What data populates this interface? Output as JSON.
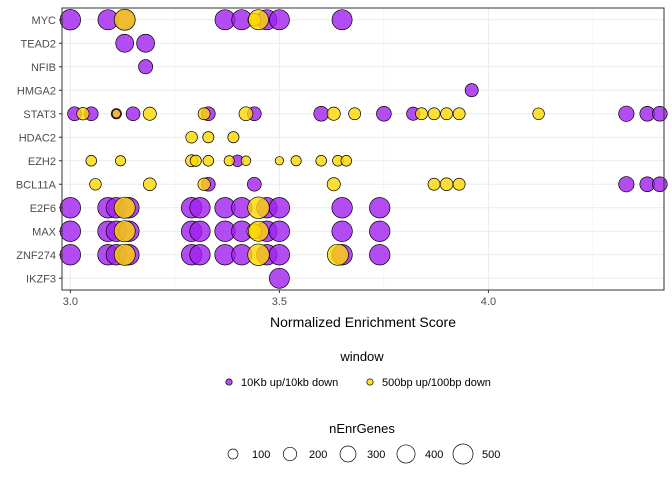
{
  "chart_data": {
    "type": "scatter",
    "xlabel": "Normalized Enrichment Score",
    "ylabel": "",
    "xlim": [
      2.98,
      4.42
    ],
    "x_ticks": [
      3.0,
      3.5,
      4.0
    ],
    "x_tick_labels": [
      "3.0",
      "3.5",
      "4.0"
    ],
    "grid": true,
    "categories": [
      "MYC",
      "TEAD2",
      "NFIB",
      "HMGA2",
      "STAT3",
      "HDAC2",
      "EZH2",
      "BCL11A",
      "E2F6",
      "MAX",
      "ZNF274",
      "IKZF3"
    ],
    "legend_color": {
      "title": "window",
      "entries": [
        {
          "label": "10Kb up/10kb down",
          "color": "#a020f0"
        },
        {
          "label": "500bp up/100bp down",
          "color": "#ffd700"
        }
      ]
    },
    "legend_size": {
      "title": "nEnrGenes",
      "values": [
        100,
        200,
        300,
        400,
        500
      ],
      "labels": [
        "100",
        "200",
        "300",
        "400",
        "500"
      ]
    },
    "series": [
      {
        "name": "10Kb up/10kb down",
        "color": "#a020f0",
        "points": [
          {
            "y": "MYC",
            "x": 3.0,
            "size": 420
          },
          {
            "y": "MYC",
            "x": 3.09,
            "size": 400
          },
          {
            "y": "MYC",
            "x": 3.13,
            "size": 400
          },
          {
            "y": "MYC",
            "x": 3.37,
            "size": 400
          },
          {
            "y": "MYC",
            "x": 3.41,
            "size": 400
          },
          {
            "y": "MYC",
            "x": 3.47,
            "size": 400
          },
          {
            "y": "MYC",
            "x": 3.5,
            "size": 400
          },
          {
            "y": "MYC",
            "x": 3.65,
            "size": 400
          },
          {
            "y": "TEAD2",
            "x": 3.13,
            "size": 300
          },
          {
            "y": "TEAD2",
            "x": 3.18,
            "size": 300
          },
          {
            "y": "NFIB",
            "x": 3.18,
            "size": 160
          },
          {
            "y": "HMGA2",
            "x": 3.96,
            "size": 130
          },
          {
            "y": "STAT3",
            "x": 3.01,
            "size": 150
          },
          {
            "y": "STAT3",
            "x": 3.05,
            "size": 150
          },
          {
            "y": "STAT3",
            "x": 3.11,
            "size": 60
          },
          {
            "y": "STAT3",
            "x": 3.15,
            "size": 150
          },
          {
            "y": "STAT3",
            "x": 3.33,
            "size": 150
          },
          {
            "y": "STAT3",
            "x": 3.44,
            "size": 150
          },
          {
            "y": "STAT3",
            "x": 3.6,
            "size": 180
          },
          {
            "y": "STAT3",
            "x": 3.75,
            "size": 180
          },
          {
            "y": "STAT3",
            "x": 3.82,
            "size": 130
          },
          {
            "y": "STAT3",
            "x": 4.33,
            "size": 200
          },
          {
            "y": "STAT3",
            "x": 4.38,
            "size": 180
          },
          {
            "y": "STAT3",
            "x": 4.41,
            "size": 180
          },
          {
            "y": "EZH2",
            "x": 3.4,
            "size": 90
          },
          {
            "y": "BCL11A",
            "x": 3.33,
            "size": 150
          },
          {
            "y": "BCL11A",
            "x": 3.44,
            "size": 150
          },
          {
            "y": "BCL11A",
            "x": 4.33,
            "size": 200
          },
          {
            "y": "BCL11A",
            "x": 4.38,
            "size": 180
          },
          {
            "y": "BCL11A",
            "x": 4.41,
            "size": 180
          },
          {
            "y": "E2F6",
            "x": 3.0,
            "size": 420
          },
          {
            "y": "E2F6",
            "x": 3.09,
            "size": 420
          },
          {
            "y": "E2F6",
            "x": 3.11,
            "size": 420
          },
          {
            "y": "E2F6",
            "x": 3.14,
            "size": 420
          },
          {
            "y": "E2F6",
            "x": 3.29,
            "size": 420
          },
          {
            "y": "E2F6",
            "x": 3.31,
            "size": 420
          },
          {
            "y": "E2F6",
            "x": 3.37,
            "size": 420
          },
          {
            "y": "E2F6",
            "x": 3.41,
            "size": 420
          },
          {
            "y": "E2F6",
            "x": 3.47,
            "size": 420
          },
          {
            "y": "E2F6",
            "x": 3.5,
            "size": 420
          },
          {
            "y": "E2F6",
            "x": 3.65,
            "size": 420
          },
          {
            "y": "E2F6",
            "x": 3.74,
            "size": 420
          },
          {
            "y": "MAX",
            "x": 3.0,
            "size": 420
          },
          {
            "y": "MAX",
            "x": 3.09,
            "size": 420
          },
          {
            "y": "MAX",
            "x": 3.11,
            "size": 420
          },
          {
            "y": "MAX",
            "x": 3.14,
            "size": 420
          },
          {
            "y": "MAX",
            "x": 3.29,
            "size": 420
          },
          {
            "y": "MAX",
            "x": 3.31,
            "size": 420
          },
          {
            "y": "MAX",
            "x": 3.37,
            "size": 420
          },
          {
            "y": "MAX",
            "x": 3.41,
            "size": 420
          },
          {
            "y": "MAX",
            "x": 3.47,
            "size": 420
          },
          {
            "y": "MAX",
            "x": 3.5,
            "size": 420
          },
          {
            "y": "MAX",
            "x": 3.65,
            "size": 420
          },
          {
            "y": "MAX",
            "x": 3.74,
            "size": 420
          },
          {
            "y": "ZNF274",
            "x": 3.0,
            "size": 420
          },
          {
            "y": "ZNF274",
            "x": 3.09,
            "size": 420
          },
          {
            "y": "ZNF274",
            "x": 3.11,
            "size": 420
          },
          {
            "y": "ZNF274",
            "x": 3.14,
            "size": 420
          },
          {
            "y": "ZNF274",
            "x": 3.29,
            "size": 420
          },
          {
            "y": "ZNF274",
            "x": 3.31,
            "size": 420
          },
          {
            "y": "ZNF274",
            "x": 3.37,
            "size": 420
          },
          {
            "y": "ZNF274",
            "x": 3.41,
            "size": 420
          },
          {
            "y": "ZNF274",
            "x": 3.47,
            "size": 420
          },
          {
            "y": "ZNF274",
            "x": 3.5,
            "size": 420
          },
          {
            "y": "ZNF274",
            "x": 3.65,
            "size": 420
          },
          {
            "y": "ZNF274",
            "x": 3.74,
            "size": 420
          },
          {
            "y": "IKZF3",
            "x": 3.5,
            "size": 400
          }
        ]
      },
      {
        "name": "500bp up/100bp down",
        "color": "#ffd700",
        "points": [
          {
            "y": "MYC",
            "x": 3.13,
            "size": 450
          },
          {
            "y": "MYC",
            "x": 3.44,
            "size": 120
          },
          {
            "y": "MYC",
            "x": 3.45,
            "size": 400
          },
          {
            "y": "STAT3",
            "x": 3.03,
            "size": 110
          },
          {
            "y": "STAT3",
            "x": 3.11,
            "size": 30
          },
          {
            "y": "STAT3",
            "x": 3.19,
            "size": 130
          },
          {
            "y": "STAT3",
            "x": 3.32,
            "size": 100
          },
          {
            "y": "STAT3",
            "x": 3.42,
            "size": 150
          },
          {
            "y": "STAT3",
            "x": 3.63,
            "size": 130
          },
          {
            "y": "STAT3",
            "x": 3.68,
            "size": 100
          },
          {
            "y": "STAT3",
            "x": 3.84,
            "size": 100
          },
          {
            "y": "STAT3",
            "x": 3.87,
            "size": 100
          },
          {
            "y": "STAT3",
            "x": 3.9,
            "size": 100
          },
          {
            "y": "STAT3",
            "x": 3.93,
            "size": 100
          },
          {
            "y": "STAT3",
            "x": 4.12,
            "size": 90
          },
          {
            "y": "HDAC2",
            "x": 3.29,
            "size": 90
          },
          {
            "y": "HDAC2",
            "x": 3.33,
            "size": 80
          },
          {
            "y": "HDAC2",
            "x": 3.39,
            "size": 80
          },
          {
            "y": "EZH2",
            "x": 3.05,
            "size": 70
          },
          {
            "y": "EZH2",
            "x": 3.12,
            "size": 60
          },
          {
            "y": "EZH2",
            "x": 3.29,
            "size": 100
          },
          {
            "y": "EZH2",
            "x": 3.3,
            "size": 80
          },
          {
            "y": "EZH2",
            "x": 3.33,
            "size": 70
          },
          {
            "y": "EZH2",
            "x": 3.38,
            "size": 60
          },
          {
            "y": "EZH2",
            "x": 3.42,
            "size": 50
          },
          {
            "y": "EZH2",
            "x": 3.5,
            "size": 30
          },
          {
            "y": "EZH2",
            "x": 3.54,
            "size": 60
          },
          {
            "y": "EZH2",
            "x": 3.6,
            "size": 70
          },
          {
            "y": "EZH2",
            "x": 3.64,
            "size": 70
          },
          {
            "y": "EZH2",
            "x": 3.66,
            "size": 70
          },
          {
            "y": "BCL11A",
            "x": 3.06,
            "size": 90
          },
          {
            "y": "BCL11A",
            "x": 3.19,
            "size": 120
          },
          {
            "y": "BCL11A",
            "x": 3.32,
            "size": 110
          },
          {
            "y": "BCL11A",
            "x": 3.63,
            "size": 130
          },
          {
            "y": "BCL11A",
            "x": 3.87,
            "size": 100
          },
          {
            "y": "BCL11A",
            "x": 3.9,
            "size": 120
          },
          {
            "y": "BCL11A",
            "x": 3.93,
            "size": 100
          },
          {
            "y": "E2F6",
            "x": 3.13,
            "size": 450
          },
          {
            "y": "E2F6",
            "x": 3.45,
            "size": 480
          },
          {
            "y": "MAX",
            "x": 3.13,
            "size": 450
          },
          {
            "y": "MAX",
            "x": 3.44,
            "size": 180
          },
          {
            "y": "MAX",
            "x": 3.45,
            "size": 400
          },
          {
            "y": "ZNF274",
            "x": 3.13,
            "size": 450
          },
          {
            "y": "ZNF274",
            "x": 3.45,
            "size": 480
          },
          {
            "y": "ZNF274",
            "x": 3.64,
            "size": 450
          }
        ]
      }
    ]
  }
}
